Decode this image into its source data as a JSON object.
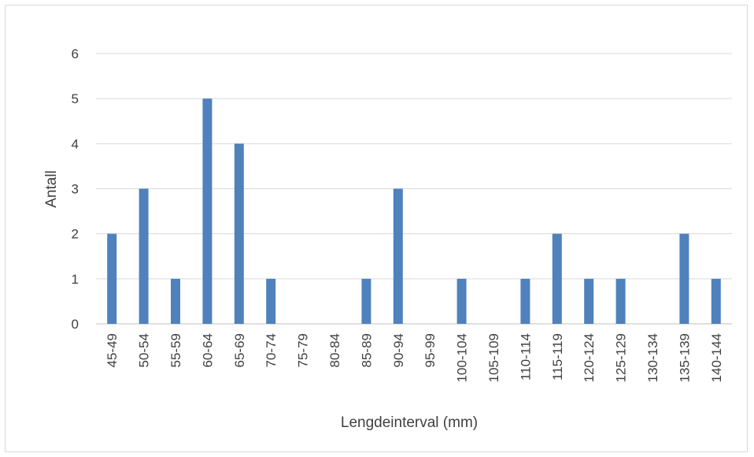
{
  "chart_data": {
    "type": "bar",
    "title": "",
    "xlabel": "Lengdeinterval (mm)",
    "ylabel": "Antall",
    "categories": [
      "45-49",
      "50-54",
      "55-59",
      "60-64",
      "65-69",
      "70-74",
      "75-79",
      "80-84",
      "85-89",
      "90-94",
      "95-99",
      "100-104",
      "105-109",
      "110-114",
      "115-119",
      "120-124",
      "125-129",
      "130-134",
      "135-139",
      "140-144"
    ],
    "values": [
      2,
      3,
      1,
      5,
      4,
      1,
      0,
      0,
      1,
      3,
      0,
      1,
      0,
      1,
      2,
      1,
      1,
      0,
      2,
      1
    ],
    "ylim": [
      0,
      6
    ],
    "yticks": [
      "0",
      "1",
      "2",
      "3",
      "4",
      "5",
      "6"
    ],
    "grid": true,
    "legend": "none",
    "colors": {
      "bar": "#4f81bd",
      "grid": "#d9d9d9",
      "axis": "#bfbfbf",
      "text": "#404040"
    }
  }
}
